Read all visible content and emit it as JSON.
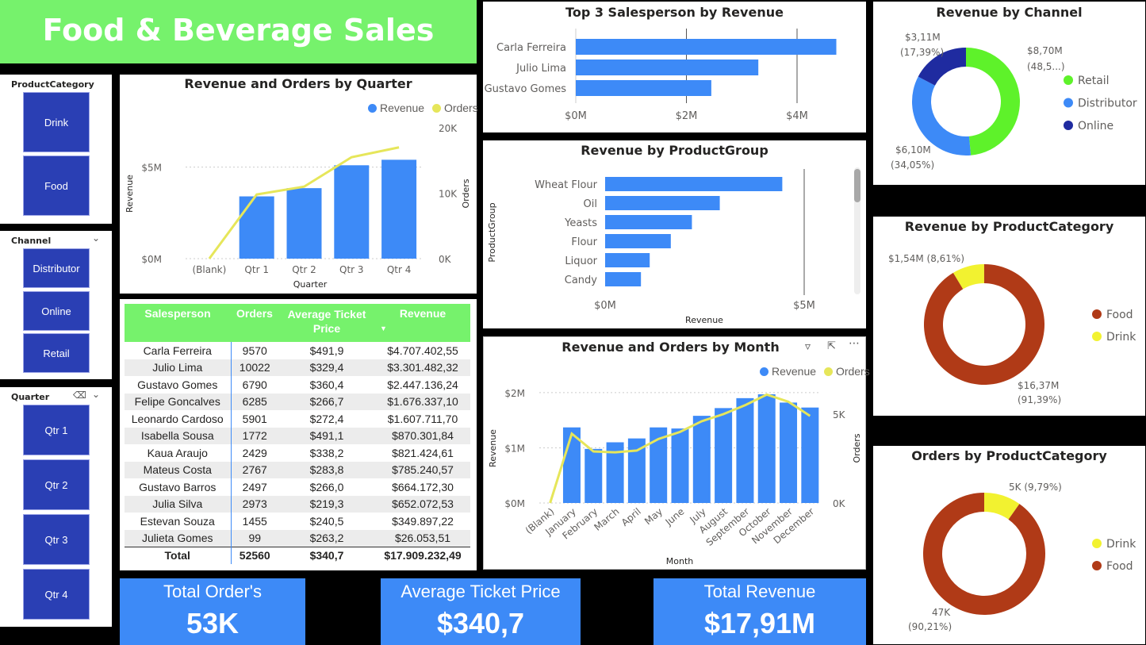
{
  "header": {
    "title": "Food & Beverage Sales"
  },
  "slicers": {
    "product_category": {
      "title": "ProductCategory",
      "items": [
        "Drink",
        "Food"
      ]
    },
    "channel": {
      "title": "Channel",
      "items": [
        "Distributor",
        "Online",
        "Retail"
      ]
    },
    "quarter": {
      "title": "Quarter",
      "items": [
        "Qtr 1",
        "Qtr 2",
        "Qtr 3",
        "Qtr 4"
      ]
    }
  },
  "quarter_chart": {
    "title": "Revenue and Orders by Quarter",
    "legend": [
      "Revenue",
      "Orders"
    ],
    "xlabel": "Quarter",
    "ylabel": "Revenue",
    "y2label": "Orders",
    "yticks": [
      "$0M",
      "$5M"
    ],
    "y2ticks": [
      "0K",
      "10K",
      "20K"
    ]
  },
  "top3_chart": {
    "title": "Top 3 Salesperson by Revenue",
    "xticks": [
      "$0M",
      "$2M",
      "$4M"
    ]
  },
  "productgroup_chart": {
    "title": "Revenue by ProductGroup",
    "xlabel": "Revenue",
    "ylabel": "ProductGroup",
    "xticks": [
      "$0M",
      "$5M"
    ]
  },
  "month_chart": {
    "title": "Revenue and Orders by Month",
    "legend": [
      "Revenue",
      "Orders"
    ],
    "xlabel": "Month",
    "ylabel": "Revenue",
    "y2label": "Orders",
    "yticks": [
      "$0M",
      "$1M",
      "$2M"
    ],
    "y2ticks": [
      "0K",
      "5K"
    ]
  },
  "channel_chart": {
    "title": "Revenue by Channel",
    "labels": [
      {
        "line1": "$8,70M",
        "line2": "(48,5...)"
      },
      {
        "line1": "$6,10M",
        "line2": "(34,05%)"
      },
      {
        "line1": "$3,11M",
        "line2": "(17,39%)"
      }
    ]
  },
  "category_revenue_chart": {
    "title": "Revenue by ProductCategory",
    "labels": [
      {
        "line1": "$1,54M (8,61%)",
        "line2": ""
      },
      {
        "line1": "$16,37M",
        "line2": "(91,39%)"
      }
    ]
  },
  "category_orders_chart": {
    "title": "Orders by ProductCategory",
    "labels": [
      {
        "line1": "5K (9,79%)",
        "line2": ""
      },
      {
        "line1": "47K",
        "line2": "(90,21%)"
      }
    ]
  },
  "table": {
    "headers": [
      "Salesperson",
      "Orders",
      "Average Ticket Price",
      "Revenue"
    ],
    "rows": [
      [
        "Carla Ferreira",
        "9570",
        "$491,9",
        "$4.707.402,55"
      ],
      [
        "Julio Lima",
        "10022",
        "$329,4",
        "$3.301.482,32"
      ],
      [
        "Gustavo Gomes",
        "6790",
        "$360,4",
        "$2.447.136,24"
      ],
      [
        "Felipe Goncalves",
        "6285",
        "$266,7",
        "$1.676.337,10"
      ],
      [
        "Leonardo Cardoso",
        "5901",
        "$272,4",
        "$1.607.711,70"
      ],
      [
        "Isabella Sousa",
        "1772",
        "$491,1",
        "$870.301,84"
      ],
      [
        "Kaua Araujo",
        "2429",
        "$338,2",
        "$821.424,61"
      ],
      [
        "Mateus Costa",
        "2767",
        "$283,8",
        "$785.240,57"
      ],
      [
        "Gustavo Barros",
        "2497",
        "$266,0",
        "$664.172,30"
      ],
      [
        "Julia Silva",
        "2973",
        "$219,3",
        "$652.072,53"
      ],
      [
        "Estevan Souza",
        "1455",
        "$240,5",
        "$349.897,22"
      ],
      [
        "Julieta Gomes",
        "99",
        "$263,2",
        "$26.053,51"
      ]
    ],
    "total": [
      "Total",
      "52560",
      "$340,7",
      "$17.909.232,49"
    ]
  },
  "kpis": {
    "orders": {
      "label": "Total Order's",
      "value": "53K"
    },
    "ticket": {
      "label": "Average Ticket Price",
      "value": "$340,7"
    },
    "revenue": {
      "label": "Total Revenue",
      "value": "$17,91M"
    }
  },
  "colors": {
    "revenue": "#3d8af7",
    "orders": "#e6e65a",
    "header": "#76f26c",
    "slicer": "#2a3fb4",
    "retail": "#5ef22a",
    "distributor": "#3d8af7",
    "online": "#1f2ba0",
    "food": "#b03a17",
    "drink": "#f2f230"
  },
  "chart_data": [
    {
      "type": "bar",
      "title": "Revenue and Orders by Quarter",
      "categories": [
        "(Blank)",
        "Qtr 1",
        "Qtr 2",
        "Qtr 3",
        "Qtr 4"
      ],
      "series": [
        {
          "name": "Revenue",
          "values": [
            0,
            3.4,
            3.85,
            5.1,
            5.4
          ]
        },
        {
          "name": "Orders",
          "values": [
            0,
            9800,
            11000,
            15500,
            17000
          ]
        }
      ],
      "ylim": [
        0,
        6.5
      ],
      "y2lim": [
        0,
        20000
      ]
    },
    {
      "type": "bar",
      "title": "Top 3 Salesperson by Revenue",
      "categories": [
        "Carla Ferreira",
        "Julio Lima",
        "Gustavo Gomes"
      ],
      "values": [
        4.71,
        3.3,
        2.45
      ],
      "xlim": [
        0,
        5
      ]
    },
    {
      "type": "bar",
      "title": "Revenue by ProductGroup",
      "categories": [
        "Wheat Flour",
        "Oil",
        "Yeasts",
        "Flour",
        "Liquor",
        "Candy"
      ],
      "values": [
        4.45,
        2.88,
        2.18,
        1.65,
        1.12,
        0.9
      ],
      "xlim": [
        0,
        5
      ]
    },
    {
      "type": "bar",
      "title": "Revenue and Orders by Month",
      "categories": [
        "(Blank)",
        "January",
        "February",
        "March",
        "April",
        "May",
        "June",
        "July",
        "August",
        "September",
        "October",
        "November",
        "December"
      ],
      "series": [
        {
          "name": "Revenue",
          "values": [
            0,
            1.37,
            0.98,
            1.1,
            1.17,
            1.37,
            1.35,
            1.58,
            1.72,
            1.9,
            1.97,
            1.82,
            1.73
          ]
        },
        {
          "name": "Orders",
          "values": [
            0,
            3900,
            2900,
            2850,
            2950,
            3600,
            4000,
            4600,
            5000,
            5500,
            6100,
            5700,
            4900
          ]
        }
      ],
      "ylim": [
        0,
        2.2
      ],
      "y2lim": [
        0,
        7500
      ]
    },
    {
      "type": "pie",
      "title": "Revenue by Channel",
      "categories": [
        "Retail",
        "Distributor",
        "Online"
      ],
      "values": [
        8.7,
        6.1,
        3.11
      ]
    },
    {
      "type": "pie",
      "title": "Revenue by ProductCategory",
      "categories": [
        "Food",
        "Drink"
      ],
      "values": [
        16.37,
        1.54
      ]
    },
    {
      "type": "pie",
      "title": "Orders by ProductCategory",
      "categories": [
        "Drink",
        "Food"
      ],
      "values": [
        5.14,
        47.42
      ]
    }
  ]
}
